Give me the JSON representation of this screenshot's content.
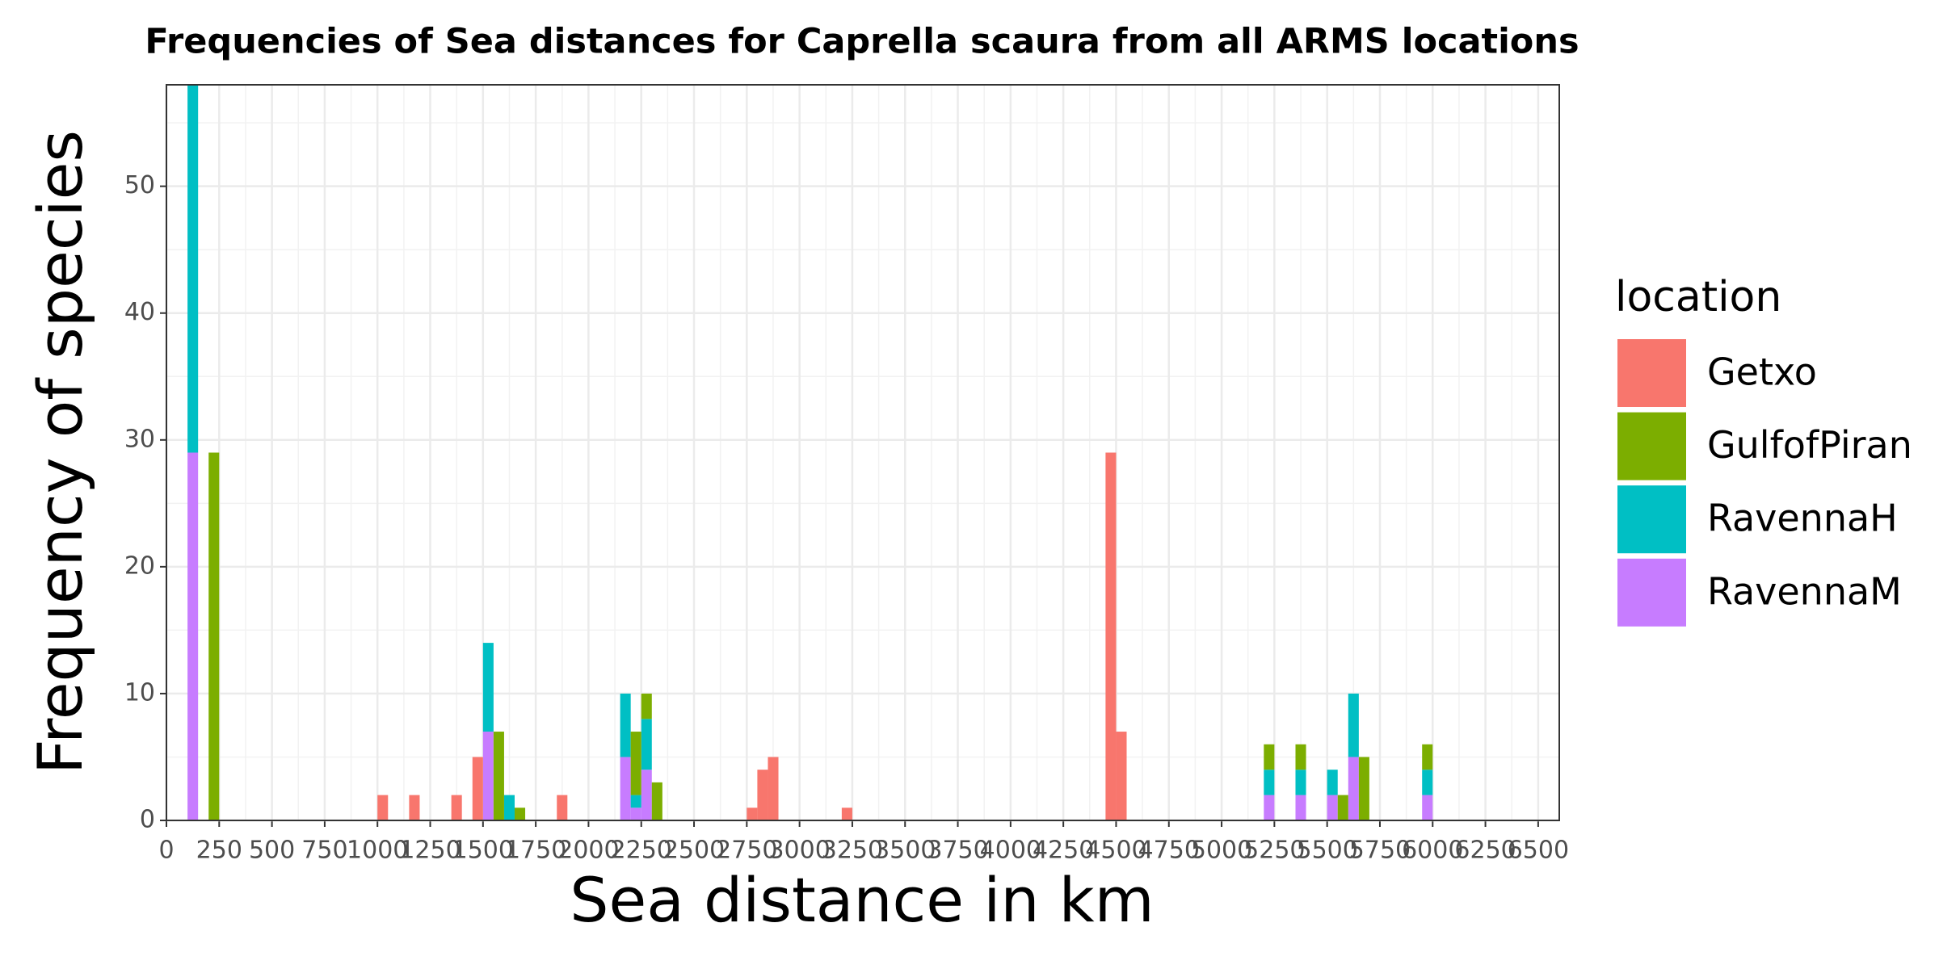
{
  "chart_data": {
    "type": "histogram",
    "title": "Frequencies of Sea distances for Caprella scaura from all ARMS locations",
    "xlabel": "Sea distance in km",
    "ylabel": "Frequency of species",
    "legend_title": "location",
    "legend": "right",
    "grid": true,
    "stacked": true,
    "xlim": [
      0,
      6600
    ],
    "ylim": [
      0,
      58
    ],
    "xticks": [
      0,
      250,
      500,
      750,
      1000,
      1250,
      1500,
      1750,
      2000,
      2250,
      2500,
      2750,
      3000,
      3250,
      3500,
      3750,
      4000,
      4250,
      4500,
      4750,
      5000,
      5250,
      5500,
      5750,
      6000,
      6250,
      6500
    ],
    "yticks": [
      0,
      10,
      20,
      30,
      40,
      50
    ],
    "bins": [
      0,
      50,
      100,
      150,
      200,
      250,
      300,
      350,
      400,
      450,
      500,
      550,
      600,
      650,
      700,
      750,
      800,
      850,
      900,
      950,
      1000,
      1050,
      1100,
      1150,
      1200,
      1250,
      1300,
      1350,
      1400,
      1450,
      1500,
      1550,
      1600,
      1650,
      1700,
      1750,
      1800,
      1850,
      1900,
      1950,
      2000,
      2050,
      2100,
      2150,
      2200,
      2250,
      2300,
      2350,
      2400,
      2450,
      2500,
      2550,
      2600,
      2650,
      2700,
      2750,
      2800,
      2850,
      2900,
      2950,
      3000,
      3050,
      3100,
      3150,
      3200,
      3250,
      3300,
      3350,
      3400,
      3450,
      3500,
      3550,
      3600,
      3650,
      3700,
      3750,
      3800,
      3850,
      3900,
      3950,
      4000,
      4050,
      4100,
      4150,
      4200,
      4250,
      4300,
      4350,
      4400,
      4450,
      4500,
      4550,
      4600,
      4650,
      4700,
      4750,
      4800,
      4850,
      4900,
      4950,
      5000,
      5050,
      5100,
      5150,
      5200,
      5250,
      5300,
      5350,
      5400,
      5450,
      5500,
      5550,
      5600,
      5650,
      5700,
      5750,
      5800,
      5850,
      5900,
      5950,
      6000
    ],
    "series": [
      {
        "name": "Getxo",
        "color": "#F8766D",
        "values": [
          0,
          0,
          0,
          0,
          0,
          0,
          0,
          0,
          0,
          0,
          0,
          0,
          0,
          0,
          0,
          0,
          0,
          0,
          0,
          0,
          2,
          0,
          0,
          2,
          0,
          0,
          0,
          2,
          0,
          5,
          0,
          0,
          0,
          0,
          0,
          0,
          0,
          2,
          0,
          0,
          0,
          0,
          0,
          0,
          0,
          0,
          0,
          0,
          0,
          0,
          0,
          0,
          0,
          0,
          0,
          1,
          4,
          5,
          0,
          0,
          0,
          0,
          0,
          0,
          1,
          0,
          0,
          0,
          0,
          0,
          0,
          0,
          0,
          0,
          0,
          0,
          0,
          0,
          0,
          0,
          0,
          0,
          0,
          0,
          0,
          0,
          0,
          0,
          0,
          29,
          7,
          0,
          0,
          0,
          0,
          0,
          0,
          0,
          0,
          0,
          0,
          0,
          0,
          0,
          0,
          0,
          0,
          0,
          0,
          0,
          0,
          0,
          0,
          0,
          0,
          0,
          0,
          0,
          0,
          0
        ]
      },
      {
        "name": "GulfofPiran",
        "color": "#7CAE00",
        "values": [
          0,
          0,
          0,
          0,
          29,
          0,
          0,
          0,
          0,
          0,
          0,
          0,
          0,
          0,
          0,
          0,
          0,
          0,
          0,
          0,
          0,
          0,
          0,
          0,
          0,
          0,
          0,
          0,
          0,
          0,
          0,
          7,
          0,
          1,
          0,
          0,
          0,
          0,
          0,
          0,
          0,
          0,
          0,
          0,
          5,
          2,
          3,
          0,
          0,
          0,
          0,
          0,
          0,
          0,
          0,
          0,
          0,
          0,
          0,
          0,
          0,
          0,
          0,
          0,
          0,
          0,
          0,
          0,
          0,
          0,
          0,
          0,
          0,
          0,
          0,
          0,
          0,
          0,
          0,
          0,
          0,
          0,
          0,
          0,
          0,
          0,
          0,
          0,
          0,
          0,
          0,
          0,
          0,
          0,
          0,
          0,
          0,
          0,
          0,
          0,
          0,
          0,
          0,
          0,
          2,
          0,
          0,
          2,
          0,
          0,
          0,
          2,
          0,
          5,
          0,
          0,
          0,
          0,
          0,
          2
        ]
      },
      {
        "name": "RavennaH",
        "color": "#00BFC4",
        "values": [
          0,
          0,
          29,
          0,
          0,
          0,
          0,
          0,
          0,
          0,
          0,
          0,
          0,
          0,
          0,
          0,
          0,
          0,
          0,
          0,
          0,
          0,
          0,
          0,
          0,
          0,
          0,
          0,
          0,
          0,
          7,
          0,
          2,
          0,
          0,
          0,
          0,
          0,
          0,
          0,
          0,
          0,
          0,
          5,
          1,
          4,
          0,
          0,
          0,
          0,
          0,
          0,
          0,
          0,
          0,
          0,
          0,
          0,
          0,
          0,
          0,
          0,
          0,
          0,
          0,
          0,
          0,
          0,
          0,
          0,
          0,
          0,
          0,
          0,
          0,
          0,
          0,
          0,
          0,
          0,
          0,
          0,
          0,
          0,
          0,
          0,
          0,
          0,
          0,
          0,
          0,
          0,
          0,
          0,
          0,
          0,
          0,
          0,
          0,
          0,
          0,
          0,
          0,
          0,
          2,
          0,
          0,
          2,
          0,
          0,
          2,
          0,
          5,
          0,
          0,
          0,
          0,
          0,
          0,
          2
        ]
      },
      {
        "name": "RavennaM",
        "color": "#C77CFF",
        "values": [
          0,
          0,
          29,
          0,
          0,
          0,
          0,
          0,
          0,
          0,
          0,
          0,
          0,
          0,
          0,
          0,
          0,
          0,
          0,
          0,
          0,
          0,
          0,
          0,
          0,
          0,
          0,
          0,
          0,
          0,
          7,
          0,
          0,
          0,
          0,
          0,
          0,
          0,
          0,
          0,
          0,
          0,
          0,
          5,
          1,
          4,
          0,
          0,
          0,
          0,
          0,
          0,
          0,
          0,
          0,
          0,
          0,
          0,
          0,
          0,
          0,
          0,
          0,
          0,
          0,
          0,
          0,
          0,
          0,
          0,
          0,
          0,
          0,
          0,
          0,
          0,
          0,
          0,
          0,
          0,
          0,
          0,
          0,
          0,
          0,
          0,
          0,
          0,
          0,
          0,
          0,
          0,
          0,
          0,
          0,
          0,
          0,
          0,
          0,
          0,
          0,
          0,
          0,
          0,
          2,
          0,
          0,
          2,
          0,
          0,
          2,
          0,
          5,
          0,
          0,
          0,
          0,
          0,
          0,
          2
        ]
      }
    ]
  }
}
